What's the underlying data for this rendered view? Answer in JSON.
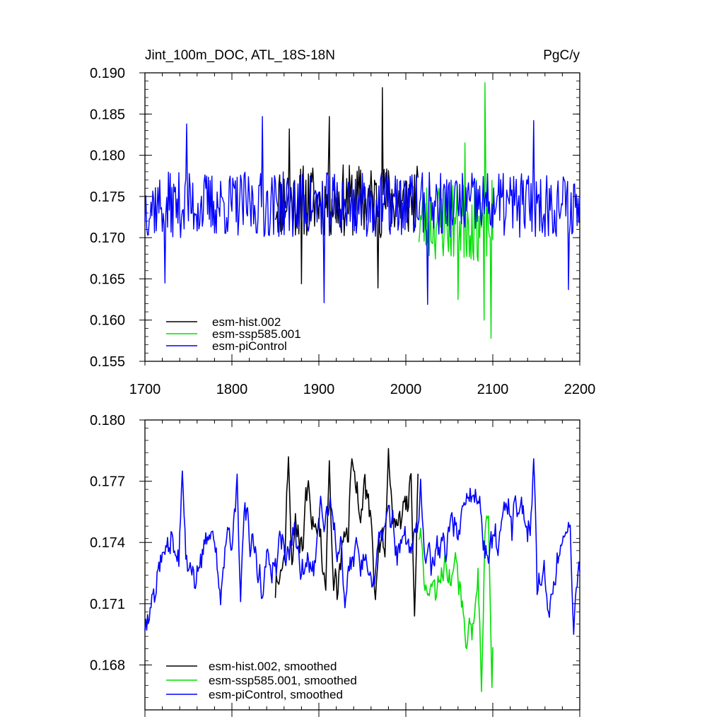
{
  "chart_data": [
    {
      "type": "line",
      "title": "Jint_100m_DOC, ATL_18S-18N",
      "units": "PgC/y",
      "xlim": [
        1700,
        2200
      ],
      "ylim": [
        0.155,
        0.19
      ],
      "xticks": [
        "1700",
        "1800",
        "1900",
        "2000",
        "2100",
        "2200"
      ],
      "yticks": [
        "0.155",
        "0.160",
        "0.165",
        "0.170",
        "0.175",
        "0.180",
        "0.185",
        "0.190"
      ],
      "legend_position": "bottom-left",
      "series": [
        {
          "name": "esm-hist.002",
          "color": "#000000",
          "x_start": 1850,
          "x_end": 2014,
          "mean": 0.1745,
          "amplitude": 0.0045,
          "seed": 11,
          "peaks": [
            [
              1866,
              0.1832
            ],
            [
              1912,
              0.1847
            ],
            [
              1973,
              0.1882
            ],
            [
              1880,
              0.1644
            ],
            [
              1968,
              0.1639
            ]
          ]
        },
        {
          "name": "esm-ssp585.001",
          "color": "#00e000",
          "x_start": 2015,
          "x_end": 2100,
          "mean": 0.172,
          "amplitude": 0.005,
          "seed": 23,
          "peaks": [
            [
              2091,
              0.1888
            ],
            [
              2068,
              0.1815
            ],
            [
              2098,
              0.1578
            ],
            [
              2090,
              0.16
            ],
            [
              2060,
              0.1625
            ]
          ]
        },
        {
          "name": "esm-piControl",
          "color": "#0000ff",
          "x_start": 1700,
          "x_end": 2200,
          "mean": 0.174,
          "amplitude": 0.004,
          "seed": 37,
          "peaks": [
            [
              1748,
              0.1838
            ],
            [
              1835,
              0.1847
            ],
            [
              2147,
              0.1842
            ],
            [
              1723,
              0.1645
            ],
            [
              1906,
              0.1621
            ],
            [
              2025,
              0.1619
            ],
            [
              2187,
              0.1637
            ]
          ]
        }
      ]
    },
    {
      "type": "line",
      "xlim": [
        1700,
        2200
      ],
      "ylim": [
        0.1658,
        0.18
      ],
      "yticks": [
        "0.168",
        "0.171",
        "0.174",
        "0.177",
        "0.180"
      ],
      "ytick_values": [
        0.168,
        0.171,
        0.174,
        0.177,
        0.18
      ],
      "legend_position": "bottom-left",
      "series": [
        {
          "name": "esm-hist.002, smoothed",
          "color": "#000000",
          "x_start": 1850,
          "x_end": 2014,
          "mean": 0.1745,
          "amplitude": 0.0015,
          "seed": 11,
          "peaks": [
            [
              1865,
              0.1782
            ],
            [
              1912,
              0.178
            ],
            [
              1980,
              0.1786
            ],
            [
              1938,
              0.1781
            ],
            [
              2010,
              0.1704
            ],
            [
              1965,
              0.1712
            ]
          ]
        },
        {
          "name": "esm-ssp585.001, smoothed",
          "color": "#00e000",
          "x_start": 2015,
          "x_end": 2100,
          "mean": 0.1722,
          "amplitude": 0.0012,
          "seed": 23,
          "peaks": [
            [
              2017,
              0.1747
            ],
            [
              2093,
              0.1753
            ],
            [
              2057,
              0.1735
            ],
            [
              2087,
              0.1667
            ],
            [
              2099,
              0.1669
            ],
            [
              2070,
              0.1688
            ]
          ]
        },
        {
          "name": "esm-piControl, smoothed",
          "color": "#0000ff",
          "x_start": 1700,
          "x_end": 2200,
          "mean": 0.1738,
          "amplitude": 0.0012,
          "seed": 37,
          "peaks": [
            [
              1743,
              0.1775
            ],
            [
              2147,
              0.1781
            ],
            [
              2017,
              0.1771
            ],
            [
              1810,
              0.1711
            ],
            [
              1930,
              0.1708
            ],
            [
              2193,
              0.1695
            ]
          ]
        }
      ]
    }
  ]
}
